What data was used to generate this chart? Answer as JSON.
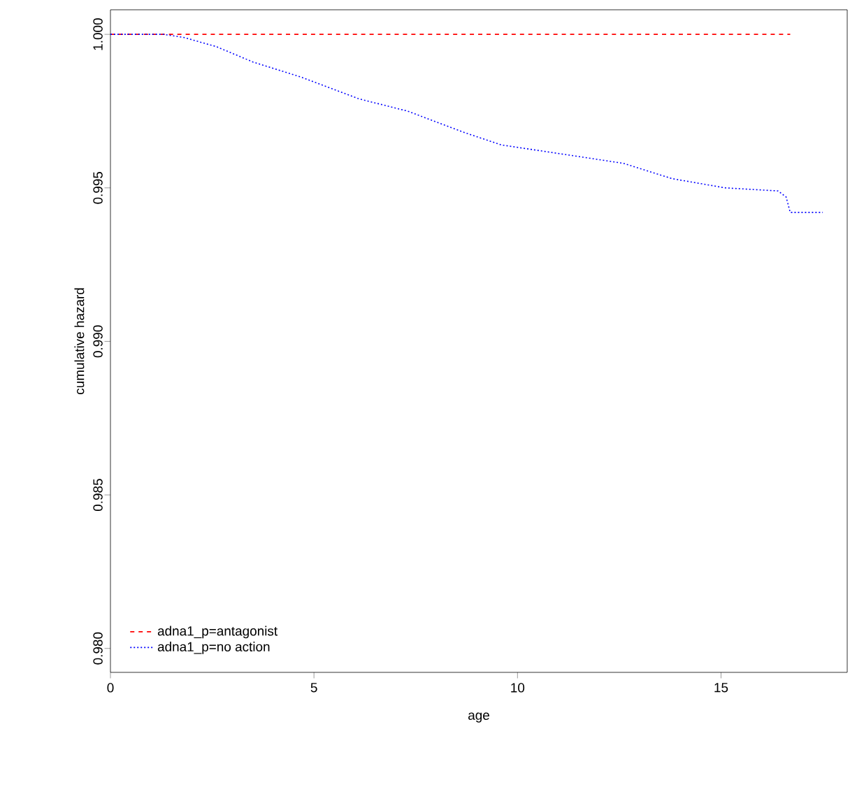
{
  "chart_data": {
    "type": "line",
    "xlabel": "age",
    "ylabel": "cumulative hazard",
    "xlim": [
      0,
      18.1
    ],
    "ylim": [
      0.97922,
      1.0008
    ],
    "xticks": [
      0,
      5,
      10,
      15
    ],
    "yticks": [
      {
        "value": 0.98,
        "label": "0.980"
      },
      {
        "value": 0.985,
        "label": "0.985"
      },
      {
        "value": 0.99,
        "label": "0.990"
      },
      {
        "value": 0.995,
        "label": "0.995"
      },
      {
        "value": 1.0,
        "label": "1.000"
      }
    ],
    "legend": "bottom left",
    "grid": false,
    "marker": "none",
    "series": [
      {
        "name": "adna1_p=antagonist",
        "color": "#ff0000",
        "line_style": "dashed",
        "x": [
          0,
          16.7
        ],
        "values": [
          1.0,
          1.0
        ]
      },
      {
        "name": "adna1_p=no action",
        "color": "#0000ff",
        "line_style": "dotted",
        "x": [
          0,
          1.3,
          1.8,
          2.6,
          3.5,
          4.7,
          6.1,
          7.3,
          8.7,
          9.6,
          10.6,
          11.6,
          12.6,
          13.8,
          15.1,
          16.4,
          16.6,
          16.7,
          17.5
        ],
        "values": [
          1.0,
          1.0,
          0.9999,
          0.9996,
          0.9991,
          0.9986,
          0.9979,
          0.9975,
          0.9968,
          0.9964,
          0.9962,
          0.996,
          0.9958,
          0.9953,
          0.995,
          0.9949,
          0.9947,
          0.9942,
          0.9942
        ]
      }
    ]
  }
}
